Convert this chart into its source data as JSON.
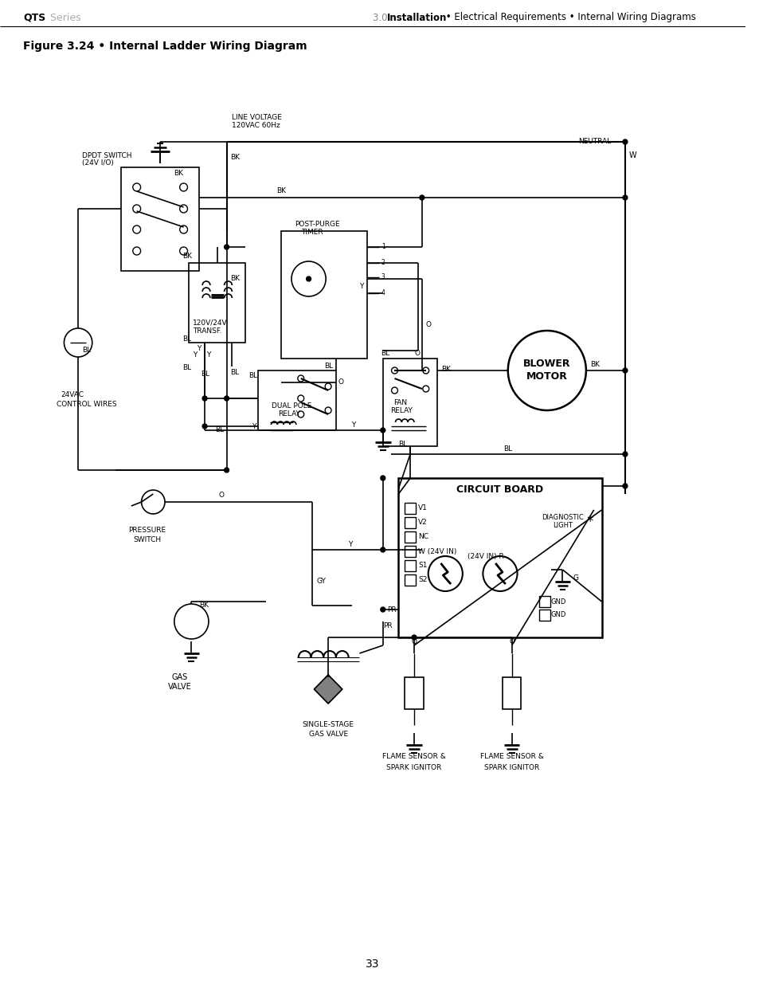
{
  "title_left": "QTS",
  "title_left_sub": " Series",
  "title_right": "3.0  Installation • Electrical Requirements • Internal Wiring Diagrams",
  "figure_title": "Figure 3.24 • Internal Ladder Wiring Diagram",
  "page_number": "33",
  "bg_color": "#ffffff",
  "line_color": "#000000",
  "text_color": "#000000",
  "gray_text": "#888888"
}
